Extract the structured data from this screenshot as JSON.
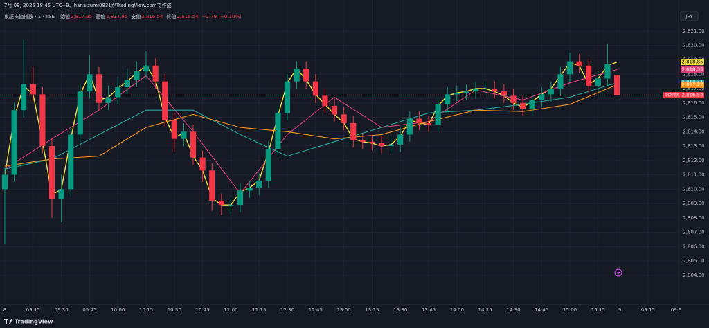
{
  "chart_data": {
    "type": "candlestick",
    "title": "7月 08, 2025 18:45 UTC+9、hanaizumi0831がTradingView.comで作成",
    "symbol": "東証株価指数 · 1 · TSE",
    "ohlc_legend": [
      {
        "label": "始値",
        "value": "2,817.95"
      },
      {
        "label": "高値",
        "value": "2,817.95"
      },
      {
        "label": "安値",
        "value": "2,816.54"
      },
      {
        "label": "終値",
        "value": "2,816.54"
      }
    ],
    "change": "−2.79 (−0.10%)",
    "currency": "JPY",
    "brand": "TradingView",
    "up_color": "#089981",
    "down_color": "#f23645",
    "grid": true,
    "xlim": [
      -0.515,
      71.54
    ],
    "ylim": [
      2801.97,
      2822.3
    ],
    "xticks": [
      {
        "value": 0,
        "label": "8"
      },
      {
        "value": 3,
        "label": "09:15"
      },
      {
        "value": 6,
        "label": "09:30"
      },
      {
        "value": 9,
        "label": "09:45"
      },
      {
        "value": 12,
        "label": "10:00"
      },
      {
        "value": 15,
        "label": "10:15"
      },
      {
        "value": 18,
        "label": "10:30"
      },
      {
        "value": 21,
        "label": "10:45"
      },
      {
        "value": 24,
        "label": "11:00"
      },
      {
        "value": 27,
        "label": "11:15"
      },
      {
        "value": 30,
        "label": "12:30"
      },
      {
        "value": 33,
        "label": "12:45"
      },
      {
        "value": 36,
        "label": "13:00"
      },
      {
        "value": 39,
        "label": "13:15"
      },
      {
        "value": 42,
        "label": "13:30"
      },
      {
        "value": 45,
        "label": "13:45"
      },
      {
        "value": 48,
        "label": "14:00"
      },
      {
        "value": 51,
        "label": "14:15"
      },
      {
        "value": 54,
        "label": "14:30"
      },
      {
        "value": 57,
        "label": "14:45"
      },
      {
        "value": 60,
        "label": "15:00"
      },
      {
        "value": 63,
        "label": "15:15"
      },
      {
        "value": 65.3,
        "label": "9"
      },
      {
        "value": 68.3,
        "label": "09:15"
      },
      {
        "value": 71.3,
        "label": "09:3"
      }
    ],
    "yticks": [
      {
        "value": 2804,
        "label": "2,804.00"
      },
      {
        "value": 2805,
        "label": "2,805.00"
      },
      {
        "value": 2806,
        "label": "2,806.00"
      },
      {
        "value": 2807,
        "label": "2,807.00"
      },
      {
        "value": 2808,
        "label": "2,808.00"
      },
      {
        "value": 2809,
        "label": "2,809.00"
      },
      {
        "value": 2810,
        "label": "2,810.00"
      },
      {
        "value": 2811,
        "label": "2,811.00"
      },
      {
        "value": 2812,
        "label": "2,812.00"
      },
      {
        "value": 2813,
        "label": "2,813.00"
      },
      {
        "value": 2814,
        "label": "2,814.00"
      },
      {
        "value": 2815,
        "label": "2,815.00"
      },
      {
        "value": 2816,
        "label": "2,816.00"
      },
      {
        "value": 2817,
        "label": "2,817.00"
      },
      {
        "value": 2818,
        "label": "2,818.00"
      },
      {
        "value": 2819,
        "label": "2,819.00"
      },
      {
        "value": 2820,
        "label": "2,820.00"
      },
      {
        "value": 2821,
        "label": "2,821.00"
      }
    ],
    "candles": {
      "name": "TOPIX",
      "last_value_label": "2,816.54",
      "open": [
        2810.0,
        2811.0,
        2815.5,
        2817.3,
        2816.6,
        2813.0,
        2809.3,
        2810.0,
        2813.8,
        2816.8,
        2818.0,
        2816.0,
        2816.4,
        2817.1,
        2817.6,
        2818.2,
        2818.6,
        2817.5,
        2814.8,
        2813.5,
        2814.0,
        2812.2,
        2811.3,
        2809.2,
        2808.9,
        2808.9,
        2809.9,
        2810.1,
        2810.6,
        2812.8,
        2815.3,
        2817.5,
        2818.4,
        2817.5,
        2816.5,
        2815.8,
        2815.2,
        2814.6,
        2813.4,
        2813.3,
        2813.2,
        2813.0,
        2813.1,
        2813.8,
        2814.9,
        2814.6,
        2814.5,
        2815.9,
        2816.6,
        2816.7,
        2816.8,
        2817.0,
        2817.0,
        2816.8,
        2816.5,
        2816.0,
        2815.6,
        2816.2,
        2816.6,
        2817.0,
        2818.0,
        2818.9,
        2818.6,
        2817.2,
        2817.7,
        2817.95
      ],
      "high": [
        2811.5,
        2816.0,
        2820.4,
        2818.5,
        2817.1,
        2813.5,
        2811.0,
        2814.3,
        2817.3,
        2819.3,
        2818.5,
        2817.2,
        2817.8,
        2818.4,
        2818.9,
        2819.6,
        2819.1,
        2818.0,
        2815.3,
        2814.6,
        2814.5,
        2812.7,
        2811.8,
        2809.7,
        2809.4,
        2810.4,
        2810.6,
        2811.1,
        2813.3,
        2815.8,
        2818.0,
        2818.9,
        2818.9,
        2818.0,
        2817.0,
        2816.3,
        2815.7,
        2815.1,
        2813.9,
        2813.8,
        2813.7,
        2813.6,
        2814.3,
        2815.4,
        2815.4,
        2815.1,
        2816.4,
        2817.1,
        2817.2,
        2817.3,
        2817.5,
        2817.5,
        2817.5,
        2817.3,
        2817.0,
        2816.5,
        2816.7,
        2817.1,
        2817.5,
        2818.5,
        2819.5,
        2819.4,
        2819.1,
        2818.2,
        2820.1,
        2817.95
      ],
      "low": [
        2806.2,
        2810.5,
        2815.0,
        2816.1,
        2812.5,
        2808.0,
        2807.7,
        2809.5,
        2813.3,
        2816.3,
        2815.5,
        2815.5,
        2815.9,
        2816.6,
        2817.1,
        2817.7,
        2817.0,
        2814.3,
        2812.6,
        2813.0,
        2811.7,
        2810.5,
        2808.5,
        2808.2,
        2808.3,
        2808.4,
        2809.4,
        2809.6,
        2810.1,
        2812.3,
        2814.8,
        2817.0,
        2817.0,
        2816.0,
        2815.3,
        2814.7,
        2814.1,
        2812.9,
        2812.8,
        2812.7,
        2812.5,
        2812.5,
        2812.6,
        2813.3,
        2814.1,
        2814.0,
        2814.0,
        2815.4,
        2816.1,
        2816.2,
        2816.3,
        2816.5,
        2816.3,
        2816.0,
        2815.5,
        2815.1,
        2815.1,
        2815.7,
        2816.1,
        2816.5,
        2817.5,
        2818.1,
        2816.7,
        2816.7,
        2817.2,
        2816.54
      ],
      "close": [
        2811.0,
        2815.5,
        2817.3,
        2816.6,
        2813.0,
        2809.3,
        2810.0,
        2813.8,
        2816.8,
        2818.0,
        2816.0,
        2816.4,
        2817.1,
        2817.6,
        2818.2,
        2818.6,
        2817.5,
        2814.8,
        2813.5,
        2814.0,
        2812.2,
        2811.3,
        2809.2,
        2808.9,
        2808.9,
        2809.9,
        2810.1,
        2810.6,
        2812.8,
        2815.3,
        2817.5,
        2818.4,
        2817.5,
        2816.5,
        2815.8,
        2815.2,
        2814.6,
        2813.4,
        2813.3,
        2813.2,
        2813.0,
        2813.1,
        2813.8,
        2814.9,
        2814.6,
        2814.5,
        2815.9,
        2816.6,
        2816.7,
        2816.8,
        2817.0,
        2817.0,
        2816.8,
        2816.5,
        2816.0,
        2815.6,
        2816.2,
        2816.6,
        2817.0,
        2818.0,
        2818.9,
        2818.6,
        2817.2,
        2817.7,
        2818.7,
        2816.54
      ]
    },
    "moving_averages": [
      {
        "color": "#f5e042",
        "last_value_label": "2,818.85",
        "values": [
          2811.0,
          2815.0,
          2817.2,
          2816.6,
          2813.3,
          2809.6,
          2810.0,
          2813.5,
          2816.6,
          2818.0,
          2816.2,
          2816.4,
          2817.0,
          2817.5,
          2818.1,
          2818.6,
          2817.6,
          2815.0,
          2813.6,
          2813.9,
          2812.3,
          2811.3,
          2809.4,
          2808.9,
          2808.9,
          2809.8,
          2810.1,
          2810.6,
          2812.6,
          2815.1,
          2817.4,
          2818.4,
          2817.6,
          2816.6,
          2815.9,
          2815.2,
          2814.6,
          2813.5,
          2813.3,
          2813.2,
          2813.0,
          2813.1,
          2813.7,
          2814.8,
          2814.6,
          2814.5,
          2815.8,
          2816.5,
          2816.7,
          2816.8,
          2817.0,
          2817.0,
          2816.8,
          2816.5,
          2816.0,
          2815.7,
          2816.1,
          2816.6,
          2817.0,
          2817.9,
          2818.8,
          2818.6,
          2817.3,
          2817.7,
          2818.6,
          2818.85
        ]
      },
      {
        "color": "#e0407a",
        "last_value_label": "2,818.33",
        "x": [
          0,
          5,
          10,
          15,
          20,
          25,
          30,
          35,
          40,
          45,
          50,
          55,
          60,
          65
        ],
        "values": [
          2811.4,
          2813.5,
          2815.5,
          2817.9,
          2814.0,
          2809.7,
          2813.8,
          2816.4,
          2814.3,
          2814.7,
          2816.9,
          2816.2,
          2817.4,
          2818.33
        ]
      },
      {
        "color": "#26a69a",
        "last_value_label": "2,817.41",
        "x": [
          0,
          5,
          10,
          15,
          20,
          25,
          30,
          35,
          40,
          45,
          50,
          55,
          60,
          65
        ],
        "values": [
          2811.4,
          2812.1,
          2813.8,
          2815.5,
          2815.5,
          2813.8,
          2812.3,
          2813.3,
          2814.3,
          2815.3,
          2815.5,
          2815.9,
          2816.4,
          2817.41
        ]
      },
      {
        "color": "#f7931e",
        "last_value_label": "2,817.27",
        "x": [
          0,
          5,
          10,
          15,
          20,
          25,
          30,
          35,
          40,
          45,
          50,
          55,
          60,
          65
        ],
        "values": [
          2811.6,
          2812.1,
          2812.3,
          2814.3,
          2815.2,
          2814.3,
          2814.0,
          2813.5,
          2813.8,
          2814.7,
          2815.5,
          2815.4,
          2815.9,
          2817.27
        ]
      }
    ]
  }
}
